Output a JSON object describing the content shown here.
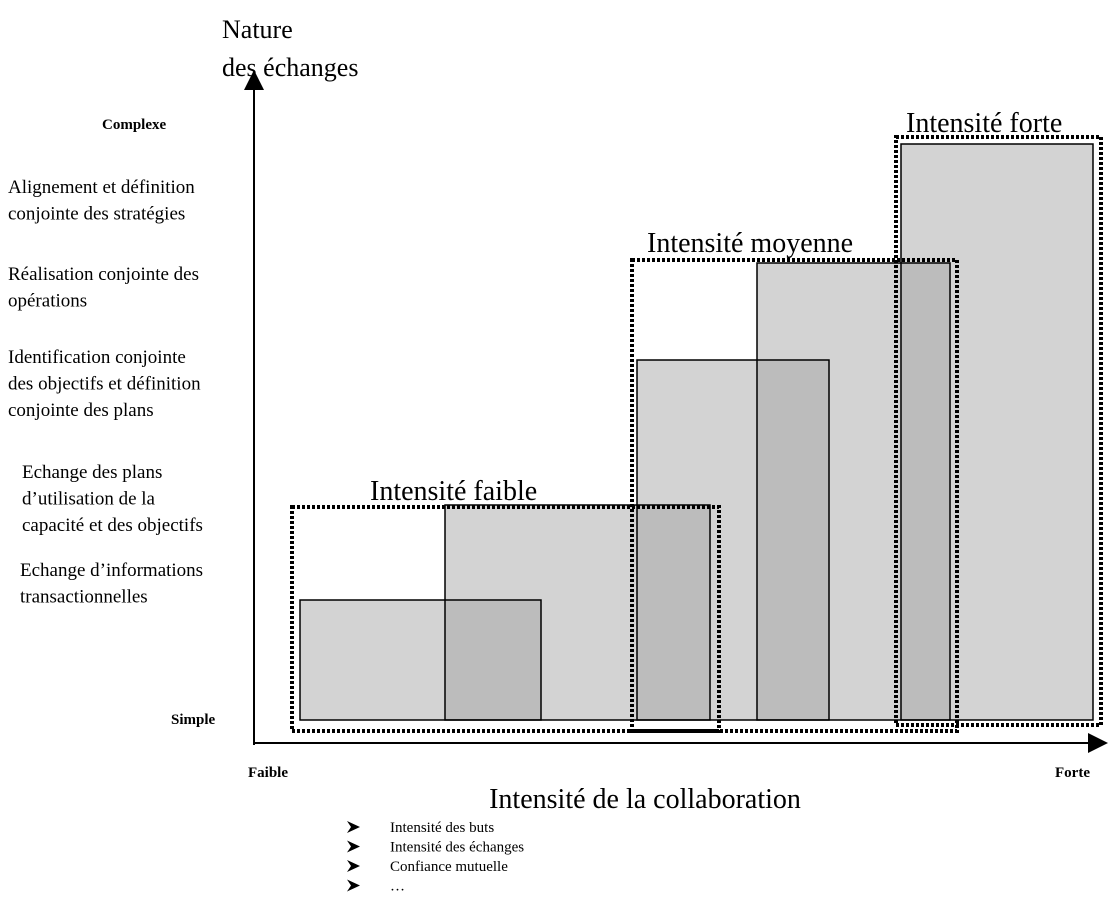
{
  "y_axis": {
    "title": [
      "Nature",
      "des échanges"
    ],
    "top": "Complexe",
    "bottom": "Simple",
    "levels": [
      [
        "Alignement et définition",
        "conjointe des stratégies"
      ],
      [
        "Réalisation conjointe des",
        "opérations"
      ],
      [
        "Identification conjointe",
        "des objectifs et définition",
        "conjointe des plans"
      ],
      [
        "Echange des plans",
        "d’utilisation de la",
        "capacité et des objectifs"
      ],
      [
        "Echange d’informations",
        "transactionnelles"
      ]
    ]
  },
  "x_axis": {
    "left": "Faible",
    "right": "Forte",
    "title": "Intensité de la collaboration",
    "bullets": [
      "Intensité des buts",
      "Intensité des échanges",
      "Confiance mutuelle",
      "…"
    ]
  },
  "groups": [
    "Intensité faible",
    "Intensité moyenne",
    "Intensité forte"
  ]
}
